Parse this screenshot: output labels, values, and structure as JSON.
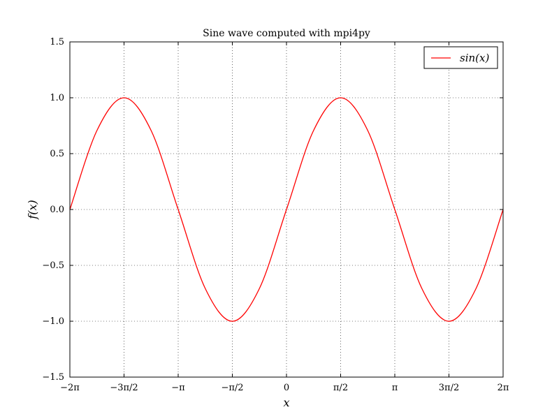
{
  "chart_data": {
    "type": "line",
    "title": "Sine wave computed with mpi4py",
    "xlabel": "x",
    "ylabel": "f(x)",
    "xlim": [
      -6.283185307179586,
      6.283185307179586
    ],
    "ylim": [
      -1.5,
      1.5
    ],
    "grid": true,
    "grid_style": "dotted",
    "legend_position": "top-right",
    "x_ticks": [
      {
        "value": -6.283185307179586,
        "label": "−2π"
      },
      {
        "value": -4.71238898038469,
        "label": "−3π/2"
      },
      {
        "value": -3.141592653589793,
        "label": "−π"
      },
      {
        "value": -1.5707963267948966,
        "label": "−π/2"
      },
      {
        "value": 0,
        "label": "0"
      },
      {
        "value": 1.5707963267948966,
        "label": "π/2"
      },
      {
        "value": 3.141592653589793,
        "label": "π"
      },
      {
        "value": 4.71238898038469,
        "label": "3π/2"
      },
      {
        "value": 6.283185307179586,
        "label": "2π"
      }
    ],
    "y_ticks": [
      {
        "value": 1.5,
        "label": "1.5"
      },
      {
        "value": 1.0,
        "label": "1.0"
      },
      {
        "value": 0.5,
        "label": "0.5"
      },
      {
        "value": 0.0,
        "label": "0.0"
      },
      {
        "value": -0.5,
        "label": "−0.5"
      },
      {
        "value": -1.0,
        "label": "−1.0"
      },
      {
        "value": -1.5,
        "label": "−1.5"
      }
    ],
    "series": [
      {
        "name": "sin(x)",
        "color": "#ff0000",
        "x": [
          -6.2832,
          -5.4978,
          -4.7124,
          -3.927,
          -3.1416,
          -2.3562,
          -1.5708,
          -0.7854,
          0.0,
          0.7854,
          1.5708,
          2.3562,
          3.1416,
          3.927,
          4.7124,
          5.4978,
          6.2832
        ],
        "y": [
          0.0,
          0.707,
          1.0,
          0.707,
          0.0,
          -0.707,
          -1.0,
          -0.707,
          0.0,
          0.707,
          1.0,
          0.707,
          0.0,
          -0.707,
          -1.0,
          -0.707,
          0.0
        ]
      }
    ]
  }
}
